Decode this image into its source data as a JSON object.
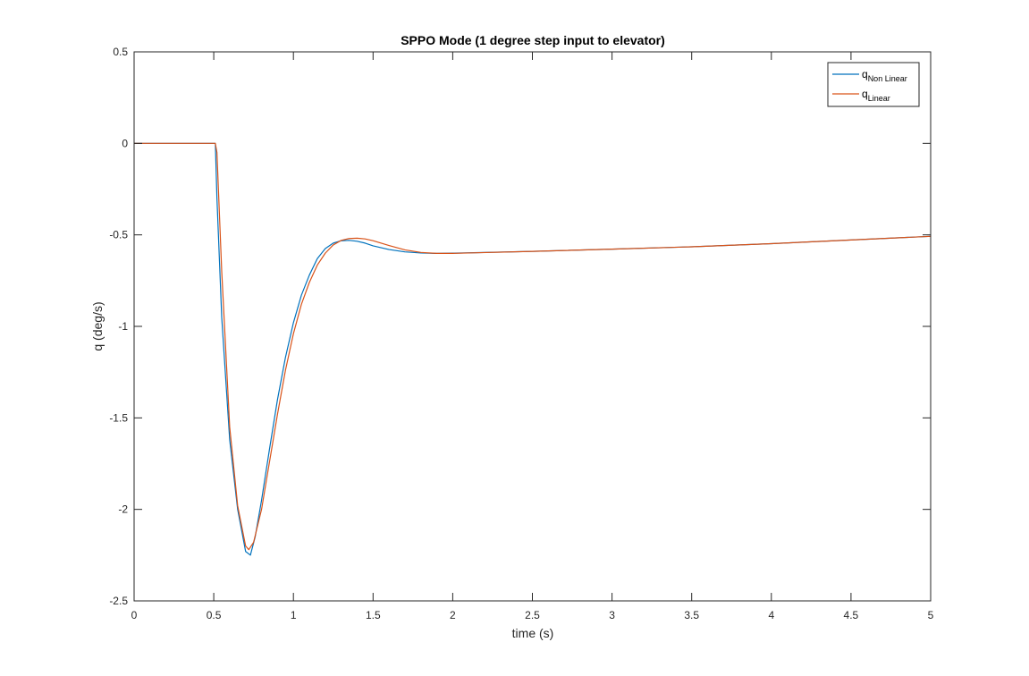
{
  "chart_data": {
    "type": "line",
    "title": "SPPO Mode (1 degree step input to elevator)",
    "xlabel": "time (s)",
    "ylabel": "q (deg/s)",
    "xlim": [
      0,
      5
    ],
    "ylim": [
      -2.5,
      0.5
    ],
    "xticks": [
      0,
      0.5,
      1,
      1.5,
      2,
      2.5,
      3,
      3.5,
      4,
      4.5,
      5
    ],
    "yticks": [
      -2.5,
      -2,
      -1.5,
      -1,
      -0.5,
      0,
      0.5
    ],
    "xtick_labels": [
      "0",
      "0.5",
      "1",
      "1.5",
      "2",
      "2.5",
      "3",
      "3.5",
      "4",
      "4.5",
      "5"
    ],
    "ytick_labels": [
      "-2.5",
      "-2",
      "-1.5",
      "-1",
      "-0.5",
      "0",
      "0.5"
    ],
    "grid": false,
    "legend_position": "top-right",
    "series": [
      {
        "name": "q",
        "name_subscript": "Non Linear",
        "color": "#0072BD",
        "x": [
          0,
          0.49,
          0.5,
          0.51,
          0.52,
          0.55,
          0.6,
          0.65,
          0.7,
          0.73,
          0.76,
          0.8,
          0.85,
          0.9,
          0.95,
          1.0,
          1.05,
          1.1,
          1.15,
          1.2,
          1.25,
          1.3,
          1.35,
          1.4,
          1.45,
          1.5,
          1.6,
          1.7,
          1.8,
          1.9,
          2.0,
          2.5,
          3.0,
          3.5,
          4.0,
          4.5,
          5.0
        ],
        "y": [
          0,
          0,
          0,
          0,
          -0.3,
          -0.95,
          -1.62,
          -2.0,
          -2.23,
          -2.25,
          -2.15,
          -1.95,
          -1.67,
          -1.4,
          -1.17,
          -0.98,
          -0.83,
          -0.72,
          -0.63,
          -0.575,
          -0.545,
          -0.532,
          -0.53,
          -0.535,
          -0.545,
          -0.56,
          -0.58,
          -0.593,
          -0.599,
          -0.601,
          -0.6,
          -0.59,
          -0.578,
          -0.565,
          -0.548,
          -0.528,
          -0.508
        ]
      },
      {
        "name": "q",
        "name_subscript": "Linear",
        "color": "#D95319",
        "x": [
          0,
          0.5,
          0.51,
          0.52,
          0.55,
          0.6,
          0.65,
          0.7,
          0.72,
          0.75,
          0.8,
          0.85,
          0.9,
          0.95,
          1.0,
          1.05,
          1.1,
          1.15,
          1.2,
          1.25,
          1.3,
          1.35,
          1.4,
          1.45,
          1.5,
          1.6,
          1.7,
          1.8,
          1.9,
          2.0,
          2.5,
          3.0,
          3.5,
          4.0,
          4.5,
          5.0
        ],
        "y": [
          0,
          0,
          0,
          -0.05,
          -0.7,
          -1.55,
          -1.98,
          -2.2,
          -2.22,
          -2.18,
          -2.0,
          -1.74,
          -1.48,
          -1.24,
          -1.04,
          -0.88,
          -0.76,
          -0.665,
          -0.6,
          -0.555,
          -0.53,
          -0.52,
          -0.518,
          -0.522,
          -0.532,
          -0.558,
          -0.582,
          -0.596,
          -0.601,
          -0.601,
          -0.59,
          -0.578,
          -0.565,
          -0.548,
          -0.528,
          -0.508
        ]
      }
    ]
  }
}
